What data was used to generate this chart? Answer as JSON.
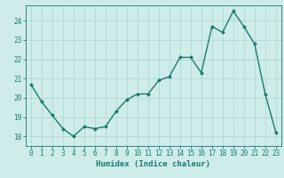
{
  "x": [
    0,
    1,
    2,
    3,
    4,
    5,
    6,
    7,
    8,
    9,
    10,
    11,
    12,
    13,
    14,
    15,
    16,
    17,
    18,
    19,
    20,
    21,
    22,
    23
  ],
  "y": [
    20.7,
    19.8,
    19.1,
    18.4,
    18.0,
    18.5,
    18.4,
    18.5,
    19.3,
    19.9,
    20.2,
    20.2,
    20.9,
    21.1,
    22.1,
    22.1,
    21.3,
    23.7,
    23.4,
    24.5,
    23.7,
    22.8,
    20.2,
    18.2
  ],
  "line_color": "#1a7a6e",
  "marker": "D",
  "marker_size": 2.0,
  "bg_color": "#ceecea",
  "grid_color": "#aed4d0",
  "axis_color": "#1a7a6e",
  "xlabel": "Humidex (Indice chaleur)",
  "xlim": [
    -0.5,
    23.5
  ],
  "ylim": [
    17.5,
    24.8
  ],
  "yticks": [
    18,
    19,
    20,
    21,
    22,
    23,
    24
  ],
  "xticks": [
    0,
    1,
    2,
    3,
    4,
    5,
    6,
    7,
    8,
    9,
    10,
    11,
    12,
    13,
    14,
    15,
    16,
    17,
    18,
    19,
    20,
    21,
    22,
    23
  ],
  "xlabel_fontsize": 6.5,
  "tick_fontsize": 5.5,
  "line_width": 1.0
}
